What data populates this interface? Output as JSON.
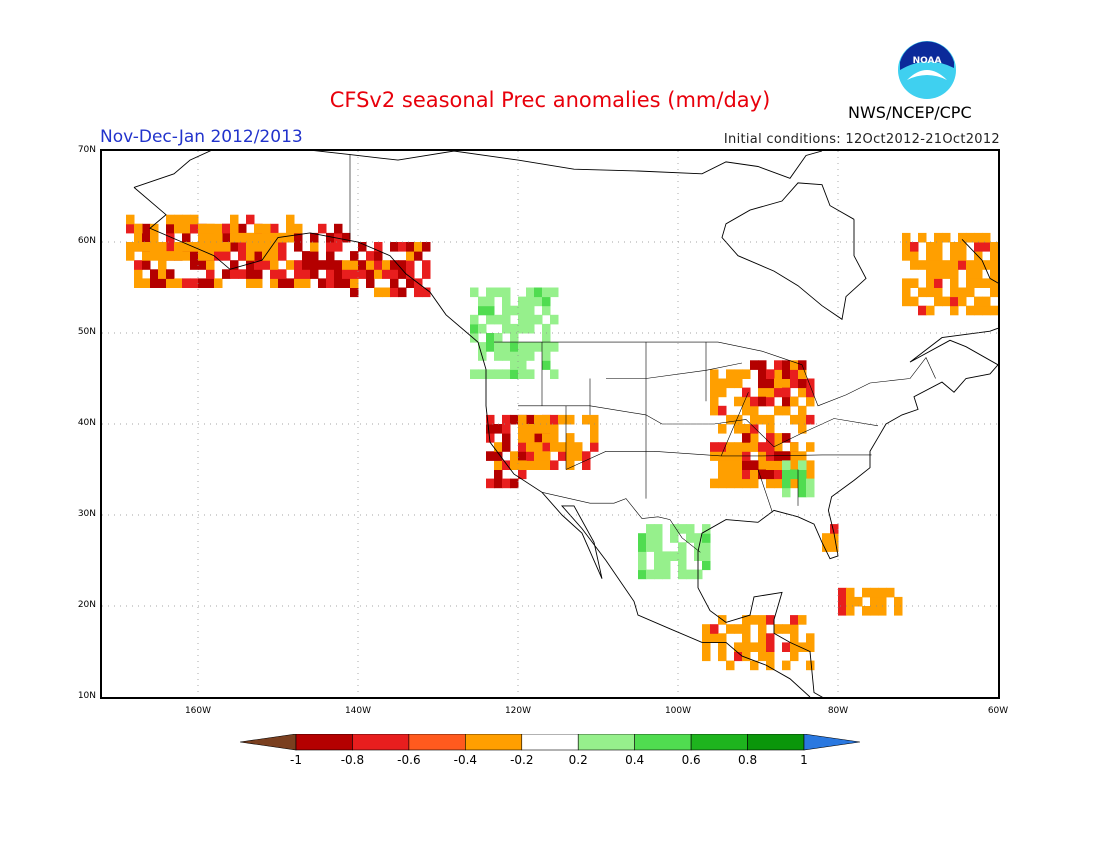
{
  "header": {
    "title": "CFSv2 seasonal Prec anomalies (mm/day)",
    "period": "Nov-Dec-Jan 2012/2013",
    "initial_conditions": "Initial conditions: 12Oct2012-21Oct2012",
    "organization": "NWS/NCEP/CPC",
    "logo_text": "NOAA"
  },
  "map": {
    "lon_range": [
      -172,
      -60
    ],
    "lat_range": [
      10,
      70
    ],
    "lat_ticks": [
      {
        "value": 70,
        "label": "70N"
      },
      {
        "value": 60,
        "label": "60N"
      },
      {
        "value": 50,
        "label": "50N"
      },
      {
        "value": 40,
        "label": "40N"
      },
      {
        "value": 30,
        "label": "30N"
      },
      {
        "value": 20,
        "label": "20N"
      },
      {
        "value": 10,
        "label": "10N"
      }
    ],
    "lon_ticks": [
      {
        "value": -160,
        "label": "160W"
      },
      {
        "value": -140,
        "label": "140W"
      },
      {
        "value": -120,
        "label": "120W"
      },
      {
        "value": -100,
        "label": "100W"
      },
      {
        "value": -80,
        "label": "80W"
      },
      {
        "value": -60,
        "label": "60W"
      }
    ],
    "gridlines": "dotted"
  },
  "colorbar": {
    "labels": [
      "-1",
      "-0.8",
      "-0.6",
      "-0.4",
      "-0.2",
      "0.2",
      "0.4",
      "0.6",
      "0.8",
      "1"
    ],
    "colors": [
      "#7a3f1f",
      "#b40000",
      "#e81e1e",
      "#ff5a1e",
      "#ff9f00",
      "#ffffff",
      "#96f08c",
      "#50dc50",
      "#1eb41e",
      "#0a960a",
      "#2a78e0"
    ]
  },
  "anomaly_regions": [
    {
      "name": "alaska-southcoast",
      "lon": [
        -168,
        -141
      ],
      "lat": [
        55,
        62
      ],
      "class": "dry-strong"
    },
    {
      "name": "yukon-bc-coast",
      "lon": [
        -141,
        -131
      ],
      "lat": [
        54,
        60
      ],
      "class": "dry-strong"
    },
    {
      "name": "alaska-west-orange",
      "lon": [
        -169,
        -148
      ],
      "lat": [
        58,
        63
      ],
      "class": "dry"
    },
    {
      "name": "pacific-northwest",
      "lon": [
        -126,
        -115
      ],
      "lat": [
        45,
        55
      ],
      "class": "wet"
    },
    {
      "name": "california",
      "lon": [
        -124,
        -116
      ],
      "lat": [
        33,
        41
      ],
      "class": "dry-strong"
    },
    {
      "name": "great-basin",
      "lon": [
        -120,
        -110
      ],
      "lat": [
        35,
        41
      ],
      "class": "dry"
    },
    {
      "name": "ohio-valley",
      "lon": [
        -96,
        -83
      ],
      "lat": [
        33,
        46
      ],
      "class": "dry"
    },
    {
      "name": "mississippi-core",
      "lon": [
        -92,
        -85
      ],
      "lat": [
        34,
        39
      ],
      "class": "dry-strong"
    },
    {
      "name": "great-lakes",
      "lon": [
        -91,
        -83
      ],
      "lat": [
        42,
        47
      ],
      "class": "dry-strong"
    },
    {
      "name": "labrador",
      "lon": [
        -72,
        -60
      ],
      "lat": [
        52,
        61
      ],
      "class": "dry"
    },
    {
      "name": "mexico-gulf",
      "lon": [
        -105,
        -96
      ],
      "lat": [
        23,
        29
      ],
      "class": "wet"
    },
    {
      "name": "central-america",
      "lon": [
        -97,
        -83
      ],
      "lat": [
        13,
        19
      ],
      "class": "dry"
    },
    {
      "name": "caribbean",
      "lon": [
        -80,
        -72
      ],
      "lat": [
        19,
        22
      ],
      "class": "dry"
    },
    {
      "name": "southeast-us",
      "lon": [
        -87,
        -83
      ],
      "lat": [
        32,
        36
      ],
      "class": "wet"
    },
    {
      "name": "florida",
      "lon": [
        -82,
        -80
      ],
      "lat": [
        26,
        29
      ],
      "class": "dry"
    }
  ]
}
